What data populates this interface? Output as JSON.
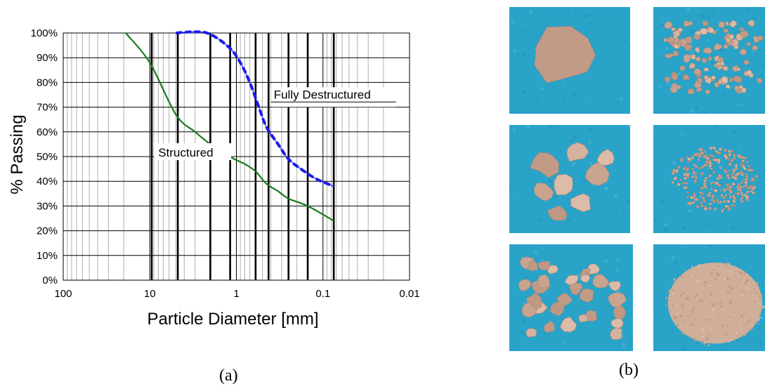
{
  "chart_data": {
    "type": "line",
    "xlabel": "Particle Diameter [mm]",
    "ylabel": "% Passing",
    "x_scale": "log",
    "x_reversed": true,
    "xlim": [
      100,
      0.01
    ],
    "ylim": [
      0,
      100
    ],
    "x_ticks": [
      "100",
      "10",
      "1",
      "0.1",
      "0.01"
    ],
    "y_ticks": [
      "0%",
      "10%",
      "20%",
      "30%",
      "40%",
      "50%",
      "60%",
      "70%",
      "80%",
      "90%",
      "100%"
    ],
    "grid": true,
    "bold_sieve_lines_mm": [
      9.5,
      4.75,
      2.0,
      1.18,
      0.6,
      0.425,
      0.25,
      0.15,
      0.075
    ],
    "series": [
      {
        "name": "Structured",
        "color": "#1a7a1a",
        "style": "solid",
        "x": [
          19,
          10,
          5,
          3,
          2,
          1.2,
          0.8,
          0.6,
          0.45,
          0.33,
          0.25,
          0.15,
          0.075
        ],
        "y": [
          100,
          88,
          67,
          60,
          55,
          50,
          47,
          44,
          39,
          36,
          33,
          30,
          24
        ]
      },
      {
        "name": "Fully Destructured",
        "color": "#1a1aee",
        "style": "dashed",
        "x": [
          5,
          3,
          2,
          1.2,
          0.9,
          0.7,
          0.55,
          0.45,
          0.33,
          0.25,
          0.18,
          0.12,
          0.075
        ],
        "y": [
          100,
          100.5,
          99.5,
          94,
          88,
          80,
          70,
          62,
          55,
          49,
          45,
          41,
          38
        ]
      }
    ],
    "annotations": [
      "Structured",
      "Fully Destructured"
    ]
  },
  "panel_labels": {
    "a": "(a)",
    "b": "(b)"
  },
  "photos": {
    "background_color": "#2aa3c9",
    "soil_color": "#c9a48f",
    "items": [
      {
        "name": "single-large-clod"
      },
      {
        "name": "fine-gravel-pieces"
      },
      {
        "name": "medium-clods"
      },
      {
        "name": "granular-soil"
      },
      {
        "name": "broken-pieces"
      },
      {
        "name": "fine-powder"
      }
    ]
  }
}
